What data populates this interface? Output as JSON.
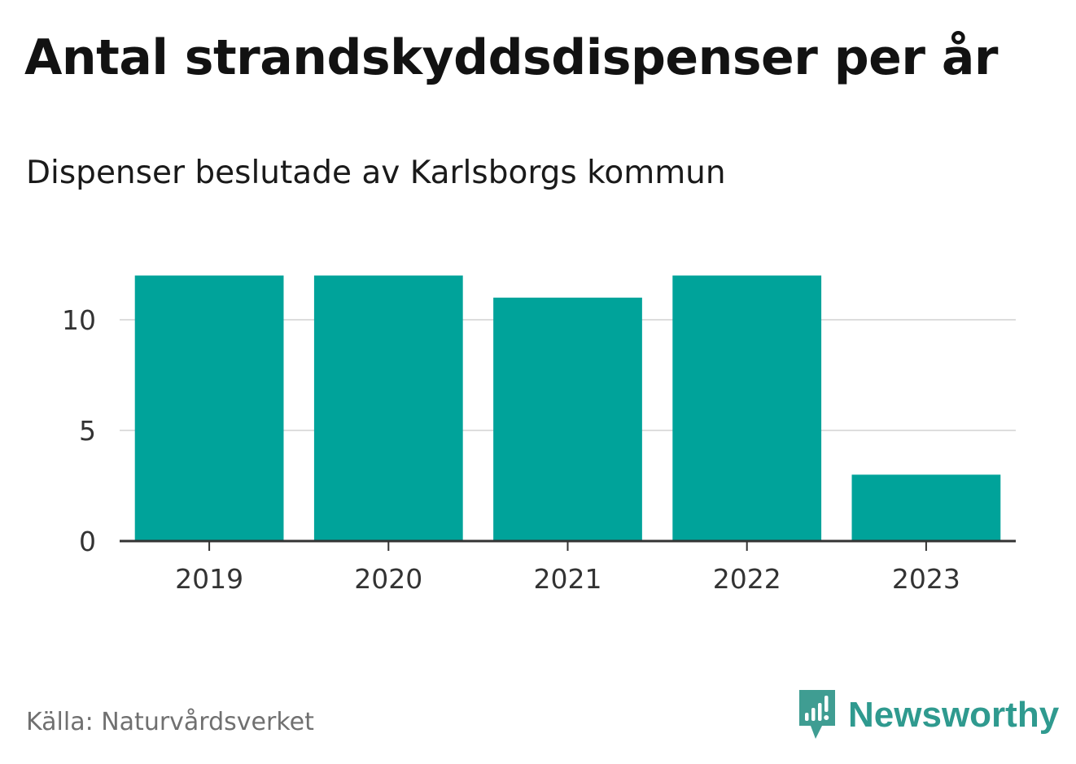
{
  "title": "Antal strandskyddsdispenser per år",
  "subtitle": "Dispenser beslutade av Karlsborgs kommun",
  "source": "Källa: Naturvårdsverket",
  "brand": {
    "name": "Newsworthy",
    "icon": "newsworthy-logo-icon",
    "color": "#2f9a8f"
  },
  "colors": {
    "bar": "#00a39a",
    "grid": "#dddddd",
    "axis": "#333333"
  },
  "chart_data": {
    "type": "bar",
    "title": "Antal strandskyddsdispenser per år",
    "subtitle": "Dispenser beslutade av Karlsborgs kommun",
    "categories": [
      "2019",
      "2020",
      "2021",
      "2022",
      "2023"
    ],
    "values": [
      12,
      12,
      11,
      12,
      3
    ],
    "xlabel": "",
    "ylabel": "",
    "ylim": [
      0,
      12
    ],
    "yticks": [
      0,
      5,
      10
    ],
    "grid": true,
    "legend": "none"
  }
}
